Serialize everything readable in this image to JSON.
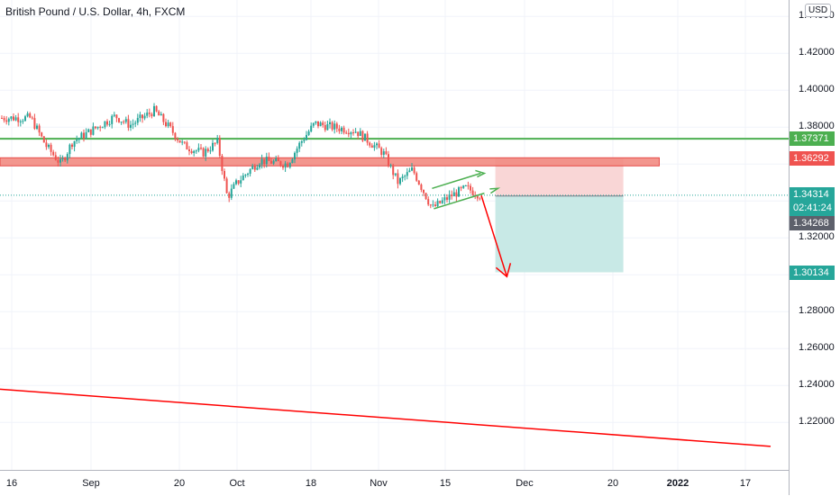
{
  "header": {
    "symbol_title": "British Pound / U.S. Dollar, 4h, FXCM",
    "currency": "USD"
  },
  "price_scale": {
    "ticks": [
      "1.44000",
      "1.42000",
      "1.40000",
      "1.38000",
      "1.36000",
      "1.34000",
      "1.32000",
      "1.30000",
      "1.28000",
      "1.26000",
      "1.24000",
      "1.22000"
    ]
  },
  "time_scale": {
    "ticks": [
      {
        "label": "16",
        "bold": false
      },
      {
        "label": "Sep",
        "bold": false
      },
      {
        "label": "20",
        "bold": false
      },
      {
        "label": "Oct",
        "bold": false
      },
      {
        "label": "18",
        "bold": false
      },
      {
        "label": "Nov",
        "bold": false
      },
      {
        "label": "15",
        "bold": false
      },
      {
        "label": "Dec",
        "bold": false
      },
      {
        "label": "20",
        "bold": false
      },
      {
        "label": "2022",
        "bold": true
      },
      {
        "label": "17",
        "bold": false
      }
    ]
  },
  "price_tags": {
    "resistance": "1.37371",
    "zone": "1.36292",
    "last_price": "1.34314",
    "countdown": "02:41:24",
    "entry": "1.34268",
    "target": "1.30134"
  },
  "colors": {
    "up_candle": "#26a69a",
    "down_candle": "#ef5350",
    "resistance_line": "#4caf50",
    "zone_fill": "#f28b82",
    "trendline": "#ff0000",
    "stop_zone": "#f9d6d6",
    "target_zone": "#c8e9e6",
    "last_price_tag": "#26a69a",
    "entry_tag": "#5d606b"
  },
  "chart_data": {
    "type": "candlestick",
    "title": "British Pound / U.S. Dollar, 4h, FXCM",
    "ylim": [
      1.205,
      1.445
    ],
    "x": [
      "Aug 16",
      "Sep 1",
      "Sep 20",
      "Oct 1",
      "Oct 18",
      "Nov 1",
      "Nov 15",
      "Dec 1",
      "Dec 20",
      "2022",
      "Jan 17"
    ],
    "price_path": [
      {
        "date": "Aug 16",
        "close": 1.385
      },
      {
        "date": "Aug 20",
        "close": 1.37
      },
      {
        "date": "Aug 24",
        "close": 1.36
      },
      {
        "date": "Aug 27",
        "close": 1.372
      },
      {
        "date": "Sep 1",
        "close": 1.378
      },
      {
        "date": "Sep 6",
        "close": 1.386
      },
      {
        "date": "Sep 9",
        "close": 1.381
      },
      {
        "date": "Sep 14",
        "close": 1.389
      },
      {
        "date": "Sep 17",
        "close": 1.38
      },
      {
        "date": "Sep 20",
        "close": 1.37
      },
      {
        "date": "Sep 24",
        "close": 1.366
      },
      {
        "date": "Sep 27",
        "close": 1.372
      },
      {
        "date": "Sep 29",
        "close": 1.342
      },
      {
        "date": "Oct 1",
        "close": 1.35
      },
      {
        "date": "Oct 6",
        "close": 1.362
      },
      {
        "date": "Oct 12",
        "close": 1.36
      },
      {
        "date": "Oct 15",
        "close": 1.372
      },
      {
        "date": "Oct 18",
        "close": 1.382
      },
      {
        "date": "Oct 22",
        "close": 1.38
      },
      {
        "date": "Oct 27",
        "close": 1.378
      },
      {
        "date": "Oct 30",
        "close": 1.372
      },
      {
        "date": "Nov 2",
        "close": 1.366
      },
      {
        "date": "Nov 5",
        "close": 1.35
      },
      {
        "date": "Nov 8",
        "close": 1.357
      },
      {
        "date": "Nov 12",
        "close": 1.336
      },
      {
        "date": "Nov 16",
        "close": 1.343
      },
      {
        "date": "Nov 19",
        "close": 1.347
      },
      {
        "date": "Nov 22",
        "close": 1.343
      }
    ],
    "horizontal_levels": [
      1.37371,
      1.36292
    ],
    "long_trendline": [
      {
        "date": "Aug 12",
        "price": 1.238
      },
      {
        "date": "Jan 22",
        "price": 1.207
      }
    ],
    "short_position": {
      "entry": 1.34268,
      "stop": 1.36292,
      "target": 1.30134
    }
  }
}
